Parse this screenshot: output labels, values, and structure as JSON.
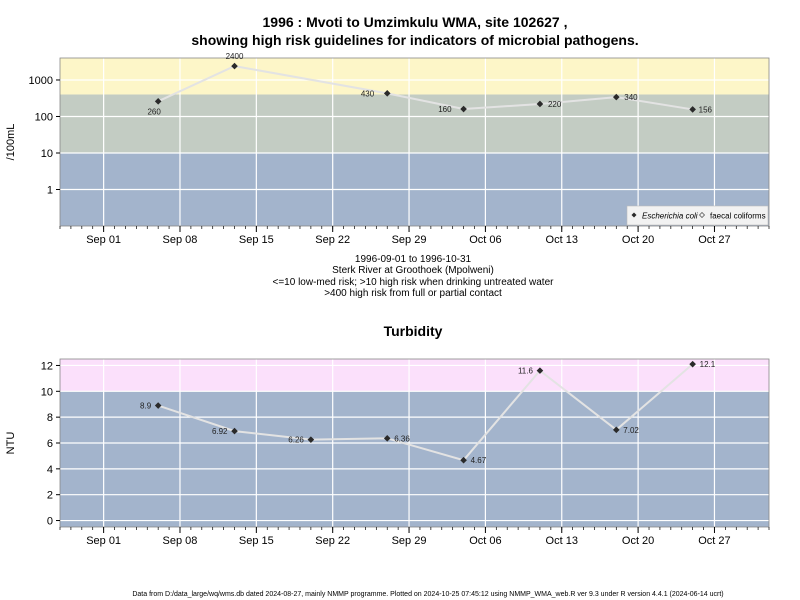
{
  "chart_data": [
    {
      "type": "line",
      "title_line1": "1996 : Mvoti to Umzimkulu WMA, site 102627 ,",
      "title_line2": "showing high risk guidelines for indicators of microbial pathogens.",
      "ylabel": "/100mL",
      "yscale": "log",
      "ylim": [
        0.1,
        4000
      ],
      "yticks": [
        1,
        10,
        100,
        1000
      ],
      "ytick_labels": [
        "1",
        "10",
        "100",
        "1000"
      ],
      "xlim": [
        "1996-08-28",
        "1996-11-01"
      ],
      "xticks": [
        "1996-09-01",
        "1996-09-08",
        "1996-09-15",
        "1996-09-22",
        "1996-09-29",
        "1996-10-06",
        "1996-10-13",
        "1996-10-20",
        "1996-10-27"
      ],
      "xtick_labels": [
        "Sep 01",
        "Sep 08",
        "Sep 15",
        "Sep 22",
        "Sep 29",
        "Oct 06",
        "Oct 13",
        "Oct 20",
        "Oct 27"
      ],
      "bands": [
        {
          "from": 0.1,
          "to": 10,
          "color": "#a3b4cc"
        },
        {
          "from": 10,
          "to": 400,
          "color": "#c3ccc3"
        },
        {
          "from": 400,
          "to": 4000,
          "color": "#fdf6c8"
        }
      ],
      "series": [
        {
          "name": "Escherichia coli",
          "x": [
            "1996-09-06",
            "1996-09-13",
            "1996-09-27",
            "1996-10-04",
            "1996-10-11",
            "1996-10-18",
            "1996-10-25"
          ],
          "values": [
            260,
            2400,
            430,
            160,
            220,
            340,
            156
          ],
          "labels": [
            "260",
            "2400",
            "430",
            "160",
            "220",
            "340",
            "156"
          ]
        }
      ],
      "legend": {
        "position": "bottom-right",
        "items": [
          "Escherichia coli",
          "faecal coliforms"
        ]
      },
      "subtitle_lines": [
        "1996-09-01 to 1996-10-31",
        "Sterk River at Groothoek (Mpolweni)",
        "<=10 low-med risk; >10 high risk when drinking untreated water",
        ">400 high risk from full or partial contact"
      ]
    },
    {
      "type": "line",
      "title": "Turbidity",
      "ylabel": "NTU",
      "ylim": [
        -0.5,
        12.5
      ],
      "yticks": [
        0,
        2,
        4,
        6,
        8,
        10,
        12
      ],
      "ytick_labels": [
        "0",
        "2",
        "4",
        "6",
        "8",
        "10",
        "12"
      ],
      "xlim": [
        "1996-08-28",
        "1996-11-01"
      ],
      "xticks": [
        "1996-09-01",
        "1996-09-08",
        "1996-09-15",
        "1996-09-22",
        "1996-09-29",
        "1996-10-06",
        "1996-10-13",
        "1996-10-20",
        "1996-10-27"
      ],
      "xtick_labels": [
        "Sep 01",
        "Sep 08",
        "Sep 15",
        "Sep 22",
        "Sep 29",
        "Oct 06",
        "Oct 13",
        "Oct 20",
        "Oct 27"
      ],
      "bands": [
        {
          "from": -0.5,
          "to": 10,
          "color": "#a3b4cc"
        },
        {
          "from": 10,
          "to": 12.5,
          "color": "#fbe0fb"
        }
      ],
      "series": [
        {
          "x": [
            "1996-09-06",
            "1996-09-13",
            "1996-09-20",
            "1996-09-27",
            "1996-10-04",
            "1996-10-11",
            "1996-10-18",
            "1996-10-25"
          ],
          "values": [
            8.9,
            6.92,
            6.26,
            6.36,
            4.67,
            11.6,
            7.02,
            12.1
          ],
          "labels": [
            "8.9",
            "6.92",
            "6.26",
            "6.36",
            "4.67",
            "11.6",
            "7.02",
            "12.1"
          ]
        }
      ]
    }
  ],
  "footer": "Data from D:/data_large/wq/wms.db dated 2024-08-27, mainly NMMP programme. Plotted on 2024-10-25 07:45:12 using NMMP_WMA_web.R ver 9.3 under R version 4.4.1 (2024-06-14 ucrt)"
}
